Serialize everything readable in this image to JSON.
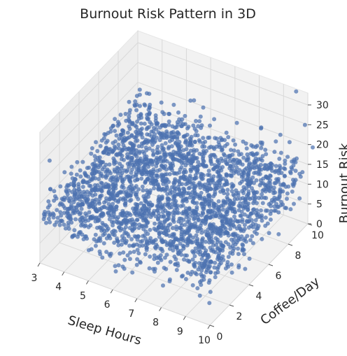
{
  "chart_data": {
    "type": "scatter",
    "projection": "3d",
    "title": "Burnout Risk Pattern in 3D",
    "xlabel": "Sleep Hours",
    "ylabel": "Coffee/Day",
    "zlabel": "Burnout Risk",
    "xticks": [
      "3",
      "4",
      "5",
      "6",
      "7",
      "8",
      "9",
      "10"
    ],
    "yticks": [
      "0",
      "2",
      "4",
      "6",
      "8",
      "10"
    ],
    "zticks": [
      "0",
      "5",
      "10",
      "15",
      "20",
      "25",
      "30"
    ],
    "xlim": [
      3,
      10
    ],
    "ylim": [
      0,
      10
    ],
    "zlim": [
      0,
      30
    ],
    "grid": true,
    "marker_color": "#4c72b0",
    "pane_color": "#f2f2f2",
    "grid_color": "#d9d9d9",
    "point_count": 2600,
    "series": [
      {
        "distribution": "dense cloud",
        "x_range": [
          3,
          10
        ],
        "y_range": [
          0,
          10
        ],
        "z_range": [
          0,
          25
        ],
        "outliers": [
          {
            "x": 9.6,
            "y": 9.8,
            "z": 33
          },
          {
            "x": 7.2,
            "y": 6.0,
            "z": 31
          },
          {
            "x": 9.8,
            "y": 10.2,
            "z": 24
          },
          {
            "x": 10.0,
            "y": 10.5,
            "z": 18
          },
          {
            "x": 9.7,
            "y": 9.9,
            "z": 6
          },
          {
            "x": 3.2,
            "y": 0.5,
            "z": 25
          },
          {
            "x": 3.0,
            "y": 1.0,
            "z": 12
          }
        ]
      }
    ]
  }
}
